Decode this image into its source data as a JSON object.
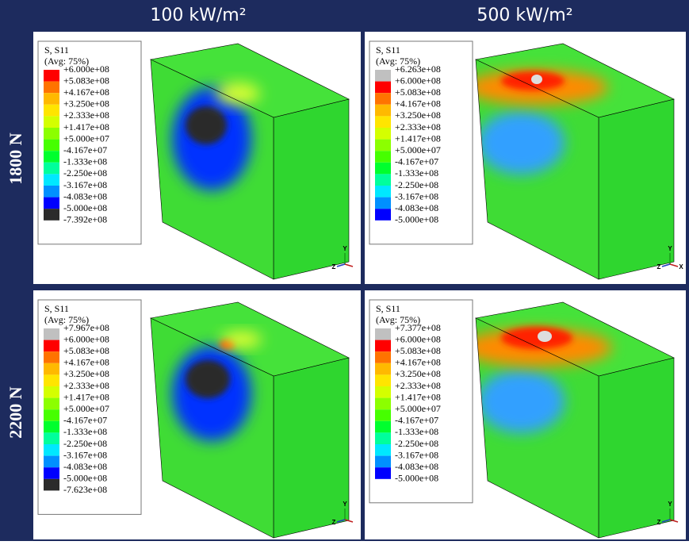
{
  "columns": [
    "100 kW/m²",
    "500 kW/m²"
  ],
  "rows": [
    "1800 N",
    "2200 N"
  ],
  "panels": [
    {
      "legend_title": "S, S11",
      "legend_subtitle": "(Avg: 75%)",
      "labels": [
        "+6.000e+08",
        "+5.083e+08",
        "+4.167e+08",
        "+3.250e+08",
        "+2.333e+08",
        "+1.417e+08",
        "+5.000e+07",
        "-4.167e+07",
        "-1.333e+08",
        "-2.250e+08",
        "-3.167e+08",
        "-4.083e+08",
        "-5.000e+08",
        "-7.392e+08"
      ],
      "colors": [
        "#ff0000",
        "#ff7300",
        "#ffb900",
        "#ffe500",
        "#d4ff00",
        "#8cff00",
        "#46ff00",
        "#00ff2e",
        "#00ff9c",
        "#00e8ff",
        "#0090ff",
        "#0000ff",
        "#2b2b2b"
      ],
      "triad": [
        "Y",
        "Z"
      ]
    },
    {
      "legend_title": "S, S11",
      "legend_subtitle": "(Avg: 75%)",
      "labels": [
        "+6.263e+08",
        "+6.000e+08",
        "+5.083e+08",
        "+4.167e+08",
        "+3.250e+08",
        "+2.333e+08",
        "+1.417e+08",
        "+5.000e+07",
        "-4.167e+07",
        "-1.333e+08",
        "-2.250e+08",
        "-3.167e+08",
        "-4.083e+08",
        "-5.000e+08"
      ],
      "colors": [
        "#c0c0c0",
        "#ff0000",
        "#ff7300",
        "#ffb900",
        "#ffe500",
        "#d4ff00",
        "#8cff00",
        "#46ff00",
        "#00ff2e",
        "#00ff9c",
        "#00e8ff",
        "#0090ff",
        "#0000ff"
      ],
      "triad": [
        "Y",
        "Z",
        "X"
      ]
    },
    {
      "legend_title": "S, S11",
      "legend_subtitle": "(Avg: 75%)",
      "labels": [
        "+7.967e+08",
        "+6.000e+08",
        "+5.083e+08",
        "+4.167e+08",
        "+3.250e+08",
        "+2.333e+08",
        "+1.417e+08",
        "+5.000e+07",
        "-4.167e+07",
        "-1.333e+08",
        "-2.250e+08",
        "-3.167e+08",
        "-4.083e+08",
        "-5.000e+08",
        "-7.623e+08"
      ],
      "colors": [
        "#c0c0c0",
        "#ff0000",
        "#ff7300",
        "#ffb900",
        "#ffe500",
        "#d4ff00",
        "#8cff00",
        "#46ff00",
        "#00ff2e",
        "#00ff9c",
        "#00e8ff",
        "#0090ff",
        "#0000ff",
        "#2b2b2b"
      ],
      "triad": [
        "Y",
        "Z"
      ]
    },
    {
      "legend_title": "S, S11",
      "legend_subtitle": "(Avg: 75%)",
      "labels": [
        "+7.377e+08",
        "+6.000e+08",
        "+5.083e+08",
        "+4.167e+08",
        "+3.250e+08",
        "+2.333e+08",
        "+1.417e+08",
        "+5.000e+07",
        "-4.167e+07",
        "-1.333e+08",
        "-2.250e+08",
        "-3.167e+08",
        "-4.083e+08",
        "-5.000e+08"
      ],
      "colors": [
        "#c0c0c0",
        "#ff0000",
        "#ff7300",
        "#ffb900",
        "#ffe500",
        "#d4ff00",
        "#8cff00",
        "#46ff00",
        "#00ff2e",
        "#00ff9c",
        "#00e8ff",
        "#0090ff",
        "#0000ff"
      ],
      "triad": [
        "Y",
        "Z"
      ]
    }
  ]
}
